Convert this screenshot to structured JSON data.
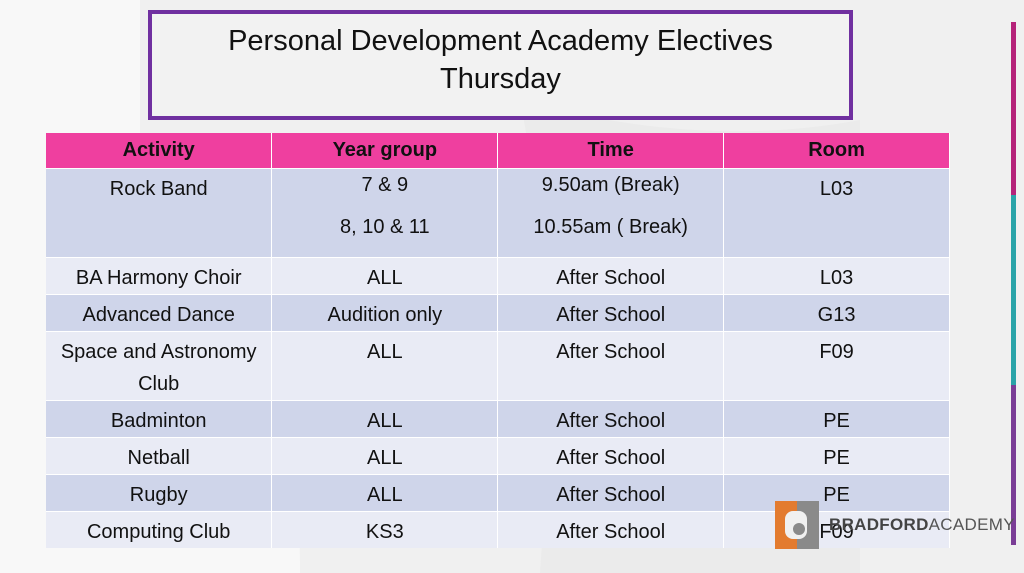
{
  "title": {
    "lines": [
      "Personal Development Academy Electives",
      "Thursday"
    ]
  },
  "table": {
    "header": [
      "Activity",
      "Year group",
      "Time",
      "Room"
    ],
    "rows": [
      [
        "Rock Band",
        [
          "7 & 9",
          "8, 10 & 11"
        ],
        [
          "9.50am (Break)",
          "10.55am ( Break)"
        ],
        "L03"
      ],
      [
        "BA Harmony Choir",
        "ALL",
        "After School",
        "L03"
      ],
      [
        "Advanced Dance",
        "Audition only",
        "After School",
        "G13"
      ],
      [
        "Space and Astronomy Club",
        "ALL",
        "After School",
        "F09"
      ],
      [
        "Badminton",
        "ALL",
        "After School",
        "PE"
      ],
      [
        "Netball",
        "ALL",
        "After School",
        "PE"
      ],
      [
        "Rugby",
        "ALL",
        "After School",
        "PE"
      ],
      [
        "Computing Club",
        "KS3",
        "After School",
        "F09"
      ]
    ]
  },
  "logo": {
    "bold": "BRADFORD",
    "light": "ACADEMY"
  }
}
